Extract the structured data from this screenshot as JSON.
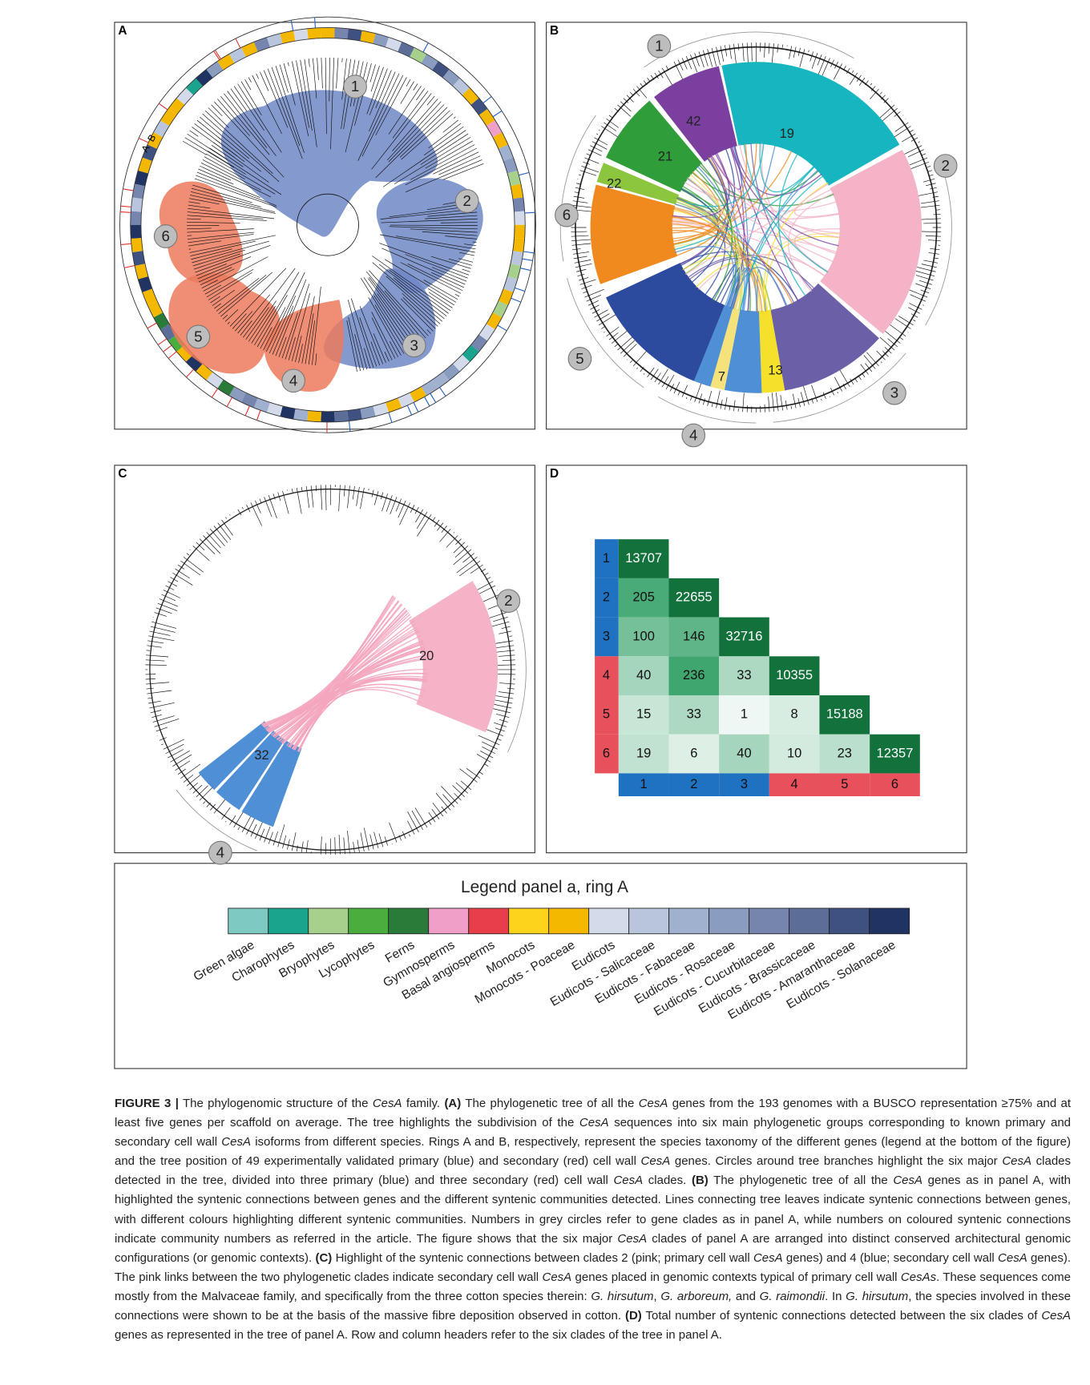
{
  "panels": [
    {
      "letter": "A",
      "ring_labels": [
        "A",
        "B"
      ],
      "clades": [
        "1",
        "2",
        "3",
        "4",
        "5",
        "6"
      ]
    },
    {
      "letter": "B",
      "clades": [
        "1",
        "2",
        "3",
        "4",
        "5",
        "6"
      ],
      "communities": [
        "42",
        "19",
        "21",
        "22",
        "7",
        "13"
      ]
    },
    {
      "letter": "C",
      "clades": [
        "2",
        "4"
      ],
      "communities": [
        "20",
        "32"
      ]
    },
    {
      "letter": "D"
    }
  ],
  "heatmap": {
    "rows": [
      "1",
      "2",
      "3",
      "4",
      "5",
      "6"
    ],
    "columns": [
      "1",
      "2",
      "3",
      "4",
      "5",
      "6"
    ],
    "values": [
      [
        13707
      ],
      [
        205,
        22655
      ],
      [
        100,
        146,
        32716
      ],
      [
        40,
        236,
        33,
        10355
      ],
      [
        15,
        33,
        1,
        8,
        15188
      ],
      [
        19,
        6,
        40,
        10,
        23,
        12357
      ]
    ]
  },
  "legend": {
    "title": "Legend panel a, ring A",
    "items": [
      {
        "name": "Green algae",
        "color": "#7ecac3"
      },
      {
        "name": "Charophytes",
        "color": "#1aa48e"
      },
      {
        "name": "Bryophytes",
        "color": "#a8d08d"
      },
      {
        "name": "Lycophytes",
        "color": "#4aae3f"
      },
      {
        "name": "Ferns",
        "color": "#2a7a3a"
      },
      {
        "name": "Gymnosperms",
        "color": "#f0a0c8"
      },
      {
        "name": "Basal angiosperms",
        "color": "#e83e4a"
      },
      {
        "name": "Monocots",
        "color": "#fdd31c"
      },
      {
        "name": "Monocots - Poaceae",
        "color": "#f5b800"
      },
      {
        "name": "Eudicots",
        "color": "#d3dbeb"
      },
      {
        "name": "Eudicots - Salicaceae",
        "color": "#b8c5dd"
      },
      {
        "name": "Eudicots - Fabaceae",
        "color": "#a0b0cf"
      },
      {
        "name": "Eudicots - Rosaceae",
        "color": "#8a9cc0"
      },
      {
        "name": "Eudicots - Cucurbitaceae",
        "color": "#7585ad"
      },
      {
        "name": "Eudicots - Brassicaceae",
        "color": "#5c6e98"
      },
      {
        "name": "Eudicots - Amaranthaceae",
        "color": "#3e5181"
      },
      {
        "name": "Eudicots - Solanaceae",
        "color": "#1f3463"
      }
    ]
  },
  "caption": {
    "runs": [
      {
        "text": "FIGURE 3 |",
        "style": "bold"
      },
      {
        "text": " The phylogenomic structure of the "
      },
      {
        "text": "CesA",
        "style": "italic"
      },
      {
        "text": " family. "
      },
      {
        "text": "(A)",
        "style": "bold"
      },
      {
        "text": " The phylogenetic tree of all the "
      },
      {
        "text": "CesA",
        "style": "italic"
      },
      {
        "text": " genes from the 193 genomes with a BUSCO representation ≥75% and at least five genes per scaffold on average. The tree highlights the subdivision of the "
      },
      {
        "text": "CesA",
        "style": "italic"
      },
      {
        "text": " sequences into six main phylogenetic groups corresponding to known primary and secondary cell wall "
      },
      {
        "text": "CesA",
        "style": "italic"
      },
      {
        "text": " isoforms from different species. Rings A and B, respectively, represent the species taxonomy of the different genes (legend at the bottom of the figure) and the tree position of 49 experimentally validated primary (blue) and secondary (red) cell wall "
      },
      {
        "text": "CesA",
        "style": "italic"
      },
      {
        "text": " genes. Circles around tree branches highlight the six major "
      },
      {
        "text": "CesA",
        "style": "italic"
      },
      {
        "text": " clades detected in the tree, divided into three primary (blue) and three secondary (red) cell wall "
      },
      {
        "text": "CesA",
        "style": "italic"
      },
      {
        "text": " clades. "
      },
      {
        "text": "(B)",
        "style": "bold"
      },
      {
        "text": " The phylogenetic tree of all the "
      },
      {
        "text": "CesA",
        "style": "italic"
      },
      {
        "text": " genes as in panel A, with highlighted the syntenic connections between genes and the different syntenic communities detected. Lines connecting tree leaves indicate syntenic connections between genes, with different colours highlighting different syntenic communities. Numbers in grey circles refer to gene clades as in panel A, while numbers on coloured syntenic connections indicate community numbers as referred in the article. The figure shows that the six major "
      },
      {
        "text": "CesA",
        "style": "italic"
      },
      {
        "text": " clades of panel A are arranged into distinct conserved architectural genomic configurations (or genomic contexts). "
      },
      {
        "text": "(C)",
        "style": "bold"
      },
      {
        "text": " Highlight of the syntenic connections between clades 2 (pink; primary cell wall "
      },
      {
        "text": "CesA",
        "style": "italic"
      },
      {
        "text": " genes) and 4 (blue; secondary cell wall "
      },
      {
        "text": "CesA",
        "style": "italic"
      },
      {
        "text": " genes). The pink links between the two phylogenetic clades indicate secondary cell wall "
      },
      {
        "text": "CesA",
        "style": "italic"
      },
      {
        "text": " genes placed in genomic contexts typical of primary cell wall "
      },
      {
        "text": "CesAs",
        "style": "italic"
      },
      {
        "text": ". These sequences come mostly from the Malvaceae family, and specifically from the three cotton species therein: "
      },
      {
        "text": "G. hirsutum",
        "style": "italic"
      },
      {
        "text": ", "
      },
      {
        "text": "G. arboreum,",
        "style": "italic"
      },
      {
        "text": " and "
      },
      {
        "text": "G. raimondii",
        "style": "italic"
      },
      {
        "text": ". In "
      },
      {
        "text": "G. hirsutum",
        "style": "italic"
      },
      {
        "text": ", the species involved in these connections were shown to be at the basis of the massive fibre deposition observed in cotton. "
      },
      {
        "text": "(D)",
        "style": "bold"
      },
      {
        "text": " Total number of syntenic connections detected between the six clades of "
      },
      {
        "text": "CesA",
        "style": "italic"
      },
      {
        "text": " genes as represented in the tree of panel A. Row and column headers refer to the six clades of the tree in panel A."
      }
    ]
  }
}
